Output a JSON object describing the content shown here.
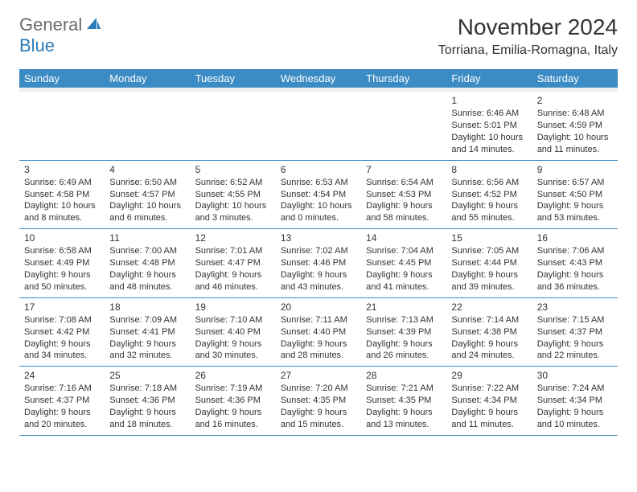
{
  "logo": {
    "part1": "General",
    "part2": "Blue"
  },
  "title": "November 2024",
  "location": "Torriana, Emilia-Romagna, Italy",
  "colors": {
    "header_bg": "#3b8bc4",
    "header_text": "#ffffff",
    "border": "#3b8bc4",
    "spacer_bg": "#eeeeee",
    "text": "#333333",
    "logo_gray": "#6b6b6b",
    "logo_blue": "#2a7ab8",
    "background": "#ffffff"
  },
  "typography": {
    "title_fontsize": 28,
    "location_fontsize": 16,
    "logo_fontsize": 22,
    "header_fontsize": 13,
    "daynum_fontsize": 12,
    "body_fontsize": 11
  },
  "day_headers": [
    "Sunday",
    "Monday",
    "Tuesday",
    "Wednesday",
    "Thursday",
    "Friday",
    "Saturday"
  ],
  "weeks": [
    [
      null,
      null,
      null,
      null,
      null,
      {
        "n": "1",
        "sr": "Sunrise: 6:46 AM",
        "ss": "Sunset: 5:01 PM",
        "dl1": "Daylight: 10 hours",
        "dl2": "and 14 minutes."
      },
      {
        "n": "2",
        "sr": "Sunrise: 6:48 AM",
        "ss": "Sunset: 4:59 PM",
        "dl1": "Daylight: 10 hours",
        "dl2": "and 11 minutes."
      }
    ],
    [
      {
        "n": "3",
        "sr": "Sunrise: 6:49 AM",
        "ss": "Sunset: 4:58 PM",
        "dl1": "Daylight: 10 hours",
        "dl2": "and 8 minutes."
      },
      {
        "n": "4",
        "sr": "Sunrise: 6:50 AM",
        "ss": "Sunset: 4:57 PM",
        "dl1": "Daylight: 10 hours",
        "dl2": "and 6 minutes."
      },
      {
        "n": "5",
        "sr": "Sunrise: 6:52 AM",
        "ss": "Sunset: 4:55 PM",
        "dl1": "Daylight: 10 hours",
        "dl2": "and 3 minutes."
      },
      {
        "n": "6",
        "sr": "Sunrise: 6:53 AM",
        "ss": "Sunset: 4:54 PM",
        "dl1": "Daylight: 10 hours",
        "dl2": "and 0 minutes."
      },
      {
        "n": "7",
        "sr": "Sunrise: 6:54 AM",
        "ss": "Sunset: 4:53 PM",
        "dl1": "Daylight: 9 hours",
        "dl2": "and 58 minutes."
      },
      {
        "n": "8",
        "sr": "Sunrise: 6:56 AM",
        "ss": "Sunset: 4:52 PM",
        "dl1": "Daylight: 9 hours",
        "dl2": "and 55 minutes."
      },
      {
        "n": "9",
        "sr": "Sunrise: 6:57 AM",
        "ss": "Sunset: 4:50 PM",
        "dl1": "Daylight: 9 hours",
        "dl2": "and 53 minutes."
      }
    ],
    [
      {
        "n": "10",
        "sr": "Sunrise: 6:58 AM",
        "ss": "Sunset: 4:49 PM",
        "dl1": "Daylight: 9 hours",
        "dl2": "and 50 minutes."
      },
      {
        "n": "11",
        "sr": "Sunrise: 7:00 AM",
        "ss": "Sunset: 4:48 PM",
        "dl1": "Daylight: 9 hours",
        "dl2": "and 48 minutes."
      },
      {
        "n": "12",
        "sr": "Sunrise: 7:01 AM",
        "ss": "Sunset: 4:47 PM",
        "dl1": "Daylight: 9 hours",
        "dl2": "and 46 minutes."
      },
      {
        "n": "13",
        "sr": "Sunrise: 7:02 AM",
        "ss": "Sunset: 4:46 PM",
        "dl1": "Daylight: 9 hours",
        "dl2": "and 43 minutes."
      },
      {
        "n": "14",
        "sr": "Sunrise: 7:04 AM",
        "ss": "Sunset: 4:45 PM",
        "dl1": "Daylight: 9 hours",
        "dl2": "and 41 minutes."
      },
      {
        "n": "15",
        "sr": "Sunrise: 7:05 AM",
        "ss": "Sunset: 4:44 PM",
        "dl1": "Daylight: 9 hours",
        "dl2": "and 39 minutes."
      },
      {
        "n": "16",
        "sr": "Sunrise: 7:06 AM",
        "ss": "Sunset: 4:43 PM",
        "dl1": "Daylight: 9 hours",
        "dl2": "and 36 minutes."
      }
    ],
    [
      {
        "n": "17",
        "sr": "Sunrise: 7:08 AM",
        "ss": "Sunset: 4:42 PM",
        "dl1": "Daylight: 9 hours",
        "dl2": "and 34 minutes."
      },
      {
        "n": "18",
        "sr": "Sunrise: 7:09 AM",
        "ss": "Sunset: 4:41 PM",
        "dl1": "Daylight: 9 hours",
        "dl2": "and 32 minutes."
      },
      {
        "n": "19",
        "sr": "Sunrise: 7:10 AM",
        "ss": "Sunset: 4:40 PM",
        "dl1": "Daylight: 9 hours",
        "dl2": "and 30 minutes."
      },
      {
        "n": "20",
        "sr": "Sunrise: 7:11 AM",
        "ss": "Sunset: 4:40 PM",
        "dl1": "Daylight: 9 hours",
        "dl2": "and 28 minutes."
      },
      {
        "n": "21",
        "sr": "Sunrise: 7:13 AM",
        "ss": "Sunset: 4:39 PM",
        "dl1": "Daylight: 9 hours",
        "dl2": "and 26 minutes."
      },
      {
        "n": "22",
        "sr": "Sunrise: 7:14 AM",
        "ss": "Sunset: 4:38 PM",
        "dl1": "Daylight: 9 hours",
        "dl2": "and 24 minutes."
      },
      {
        "n": "23",
        "sr": "Sunrise: 7:15 AM",
        "ss": "Sunset: 4:37 PM",
        "dl1": "Daylight: 9 hours",
        "dl2": "and 22 minutes."
      }
    ],
    [
      {
        "n": "24",
        "sr": "Sunrise: 7:16 AM",
        "ss": "Sunset: 4:37 PM",
        "dl1": "Daylight: 9 hours",
        "dl2": "and 20 minutes."
      },
      {
        "n": "25",
        "sr": "Sunrise: 7:18 AM",
        "ss": "Sunset: 4:36 PM",
        "dl1": "Daylight: 9 hours",
        "dl2": "and 18 minutes."
      },
      {
        "n": "26",
        "sr": "Sunrise: 7:19 AM",
        "ss": "Sunset: 4:36 PM",
        "dl1": "Daylight: 9 hours",
        "dl2": "and 16 minutes."
      },
      {
        "n": "27",
        "sr": "Sunrise: 7:20 AM",
        "ss": "Sunset: 4:35 PM",
        "dl1": "Daylight: 9 hours",
        "dl2": "and 15 minutes."
      },
      {
        "n": "28",
        "sr": "Sunrise: 7:21 AM",
        "ss": "Sunset: 4:35 PM",
        "dl1": "Daylight: 9 hours",
        "dl2": "and 13 minutes."
      },
      {
        "n": "29",
        "sr": "Sunrise: 7:22 AM",
        "ss": "Sunset: 4:34 PM",
        "dl1": "Daylight: 9 hours",
        "dl2": "and 11 minutes."
      },
      {
        "n": "30",
        "sr": "Sunrise: 7:24 AM",
        "ss": "Sunset: 4:34 PM",
        "dl1": "Daylight: 9 hours",
        "dl2": "and 10 minutes."
      }
    ]
  ]
}
